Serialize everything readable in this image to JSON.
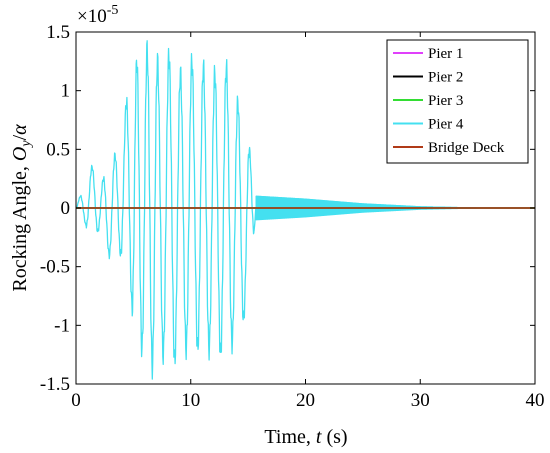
{
  "chart_data": {
    "type": "line",
    "title": "",
    "xlabel": {
      "text": "Time, ",
      "var": "t",
      "unit": " (s)"
    },
    "ylabel": {
      "text": "Rocking Angle, ",
      "var": "O",
      "sub": "y",
      "slash": "/",
      "alpha": "α"
    },
    "xlim": [
      0,
      40
    ],
    "ylim": [
      -1.5e-05,
      1.5e-05
    ],
    "y_multiplier": "×10",
    "y_multiplier_exp": "-5",
    "x_ticks": [
      {
        "value": 0,
        "label": "0"
      },
      {
        "value": 10,
        "label": "10"
      },
      {
        "value": 20,
        "label": "20"
      },
      {
        "value": 30,
        "label": "30"
      },
      {
        "value": 40,
        "label": "40"
      }
    ],
    "y_ticks": [
      {
        "value": 1.5e-05,
        "label": "1.5"
      },
      {
        "value": 1e-05,
        "label": "1"
      },
      {
        "value": 5e-06,
        "label": "0.5"
      },
      {
        "value": 0,
        "label": "0"
      },
      {
        "value": -5e-06,
        "label": "-0.5"
      },
      {
        "value": -1e-05,
        "label": "-1"
      },
      {
        "value": -1.5e-05,
        "label": "-1.5"
      }
    ],
    "grid": false,
    "legend_position": "top-right",
    "series": [
      {
        "name": "Pier 1",
        "color": "#e040fb",
        "shape": "flat",
        "value": 0
      },
      {
        "name": "Pier 2",
        "color": "#000000",
        "shape": "flat",
        "value": 0
      },
      {
        "name": "Pier 3",
        "color": "#33dd33",
        "shape": "flat",
        "value": 0
      },
      {
        "name": "Pier 4",
        "color": "#44e0f0",
        "shape": "oscillation",
        "strong_motion": {
          "start": 0,
          "end": 15.7,
          "peaks": [
            {
              "t": 0.4,
              "v": 1e-06
            },
            {
              "t": 0.9,
              "v": -1.5e-06
            },
            {
              "t": 1.4,
              "v": 3.5e-06
            },
            {
              "t": 1.9,
              "v": -2e-06
            },
            {
              "t": 2.4,
              "v": 2.5e-06
            },
            {
              "t": 2.9,
              "v": -4e-06
            },
            {
              "t": 3.4,
              "v": 4.5e-06
            },
            {
              "t": 3.9,
              "v": -4e-06
            },
            {
              "t": 4.4,
              "v": 9e-06
            },
            {
              "t": 4.9,
              "v": -8.5e-06
            },
            {
              "t": 5.3,
              "v": 1.25e-05
            },
            {
              "t": 5.75,
              "v": -1.2e-05
            },
            {
              "t": 6.2,
              "v": 1.35e-05
            },
            {
              "t": 6.65,
              "v": -1.35e-05
            },
            {
              "t": 7.1,
              "v": 1.25e-05
            },
            {
              "t": 7.6,
              "v": -1.25e-05
            },
            {
              "t": 8.1,
              "v": 1.3e-05
            },
            {
              "t": 8.6,
              "v": -1.3e-05
            },
            {
              "t": 9.1,
              "v": 1.15e-05
            },
            {
              "t": 9.6,
              "v": -1.2e-05
            },
            {
              "t": 10.1,
              "v": 1.25e-05
            },
            {
              "t": 10.6,
              "v": -1.2e-05
            },
            {
              "t": 11.1,
              "v": 1.2e-05
            },
            {
              "t": 11.6,
              "v": -1.2e-05
            },
            {
              "t": 12.1,
              "v": 1.15e-05
            },
            {
              "t": 12.6,
              "v": -1.25e-05
            },
            {
              "t": 13.1,
              "v": 1.2e-05
            },
            {
              "t": 13.6,
              "v": -1.15e-05
            },
            {
              "t": 14.1,
              "v": 9e-06
            },
            {
              "t": 14.6,
              "v": -9.5e-06
            },
            {
              "t": 15.1,
              "v": 5e-06
            },
            {
              "t": 15.5,
              "v": -2e-06
            }
          ]
        },
        "free_decay": {
          "start": 15.7,
          "end": 35,
          "initial_amplitude": 1e-06,
          "envelope": [
            {
              "t": 15.7,
              "a": 1e-06
            },
            {
              "t": 20,
              "a": 7.5e-07
            },
            {
              "t": 25,
              "a": 3.5e-07
            },
            {
              "t": 30,
              "a": 1e-07
            },
            {
              "t": 35,
              "a": 0.0
            }
          ]
        }
      },
      {
        "name": "Bridge Deck",
        "color": "#b03a18",
        "shape": "flat",
        "value": 0
      }
    ]
  }
}
